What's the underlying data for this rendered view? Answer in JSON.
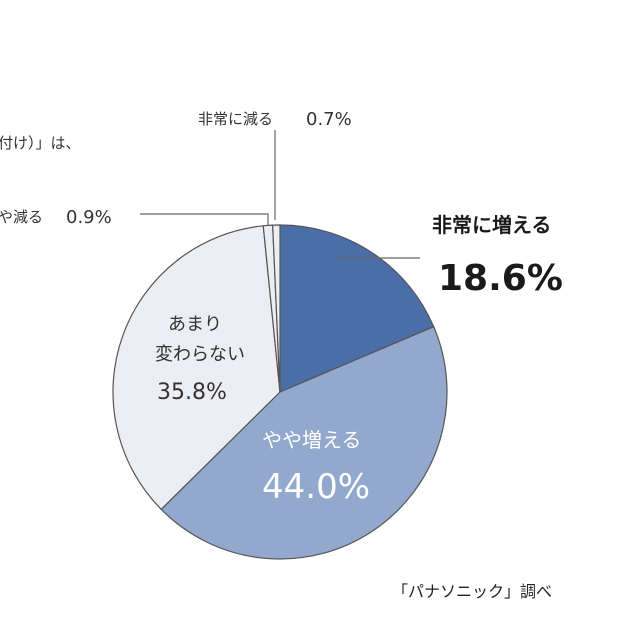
{
  "header_fragment": "付け）」は、",
  "source": "「パナソニック」調べ",
  "chart_data": {
    "type": "pie",
    "title": "",
    "start_angle_deg": 0,
    "direction": "clockwise",
    "slices": [
      {
        "name": "非常に増える",
        "label_lines": [
          "非常に増える"
        ],
        "value": 18.6,
        "display": "18.6%",
        "color": "#4b6ea9"
      },
      {
        "name": "やや増える",
        "label_lines": [
          "やや増える"
        ],
        "value": 44.0,
        "display": "44.0%",
        "color": "#92a9cd"
      },
      {
        "name": "あまり変わらない",
        "label_lines": [
          "あまり",
          "変わらない"
        ],
        "value": 35.8,
        "display": "35.8%",
        "color": "#eceef4"
      },
      {
        "name": "やや減る",
        "label_lines": [
          "や減る"
        ],
        "value": 0.9,
        "display": "0.9%",
        "color": "#eceef4"
      },
      {
        "name": "非常に減る",
        "label_lines": [
          "非常に減る"
        ],
        "value": 0.7,
        "display": "0.7%",
        "color": "#eceef4"
      }
    ],
    "stroke_color": "#555555"
  }
}
